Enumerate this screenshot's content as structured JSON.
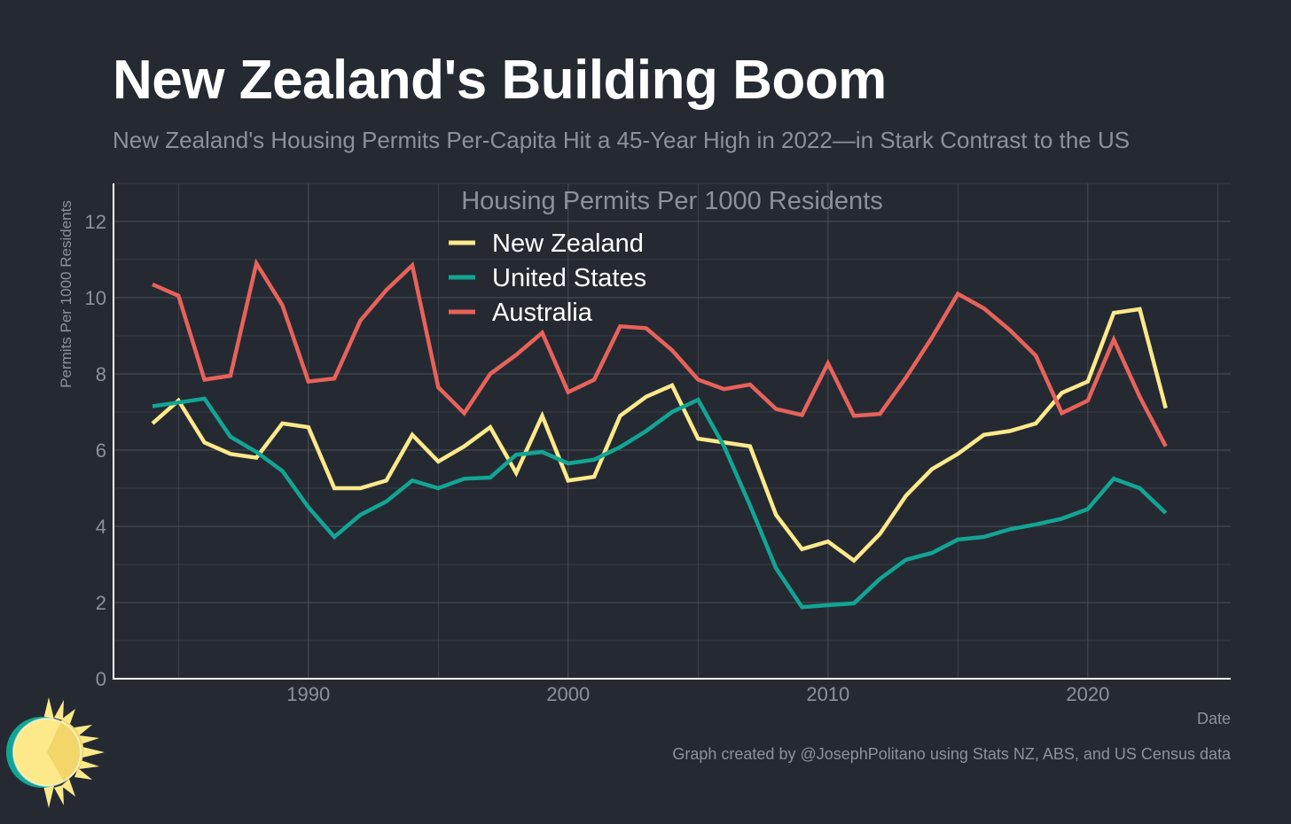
{
  "title": "New Zealand's Building Boom",
  "subtitle": "New Zealand's Housing Permits Per-Capita Hit a 45-Year High in 2022—in Stark Contrast to the US",
  "caption": "Graph created by @JosephPolitano using Stats NZ, ABS, and US Census data",
  "chart_data": {
    "type": "line",
    "title": "Housing Permits Per 1000 Residents",
    "xlabel": "Date",
    "ylabel": "Permits Per 1000 Residents",
    "xlim": [
      1982.5,
      2025.5
    ],
    "ylim": [
      0,
      13
    ],
    "x_ticks": [
      1990,
      2000,
      2010,
      2020
    ],
    "y_ticks": [
      0,
      2,
      4,
      6,
      8,
      10,
      12
    ],
    "grid": true,
    "legend_position": "top-center",
    "x": [
      1984,
      1985,
      1986,
      1987,
      1988,
      1989,
      1990,
      1991,
      1992,
      1993,
      1994,
      1995,
      1996,
      1997,
      1998,
      1999,
      2000,
      2001,
      2002,
      2003,
      2004,
      2005,
      2006,
      2007,
      2008,
      2009,
      2010,
      2011,
      2012,
      2013,
      2014,
      2015,
      2016,
      2017,
      2018,
      2019,
      2020,
      2021,
      2022,
      2023
    ],
    "series": [
      {
        "name": "New Zealand",
        "color": "#fde98a",
        "values": [
          6.7,
          7.3,
          6.2,
          5.9,
          5.8,
          6.7,
          6.6,
          5.0,
          5.0,
          5.2,
          6.4,
          5.7,
          6.1,
          6.6,
          5.4,
          6.9,
          5.2,
          5.3,
          6.9,
          7.4,
          7.7,
          6.3,
          6.2,
          6.1,
          4.3,
          3.4,
          3.6,
          3.1,
          3.8,
          4.8,
          5.5,
          5.9,
          6.4,
          6.5,
          6.7,
          7.5,
          7.8,
          9.6,
          9.7,
          7.1
        ]
      },
      {
        "name": "United States",
        "color": "#12a594",
        "values": [
          7.15,
          7.25,
          7.35,
          6.35,
          5.95,
          5.45,
          4.5,
          3.72,
          4.3,
          4.65,
          5.2,
          5.0,
          5.25,
          5.28,
          5.88,
          5.95,
          5.65,
          5.75,
          6.08,
          6.5,
          7.0,
          7.32,
          6.1,
          4.55,
          2.9,
          1.88,
          1.93,
          1.98,
          2.62,
          3.12,
          3.3,
          3.65,
          3.72,
          3.92,
          4.05,
          4.2,
          4.45,
          5.25,
          5.0,
          4.35
        ]
      },
      {
        "name": "Australia",
        "color": "#e8625a",
        "values": [
          10.35,
          10.05,
          7.85,
          7.95,
          10.9,
          9.8,
          7.8,
          7.88,
          9.4,
          10.2,
          10.85,
          7.65,
          6.97,
          8.0,
          8.5,
          9.08,
          7.52,
          7.85,
          9.25,
          9.2,
          8.62,
          7.85,
          7.6,
          7.72,
          7.08,
          6.92,
          8.28,
          6.9,
          6.95,
          7.9,
          8.95,
          10.1,
          9.72,
          9.15,
          8.48,
          6.97,
          7.3,
          8.9,
          7.4,
          6.1
        ]
      }
    ]
  }
}
